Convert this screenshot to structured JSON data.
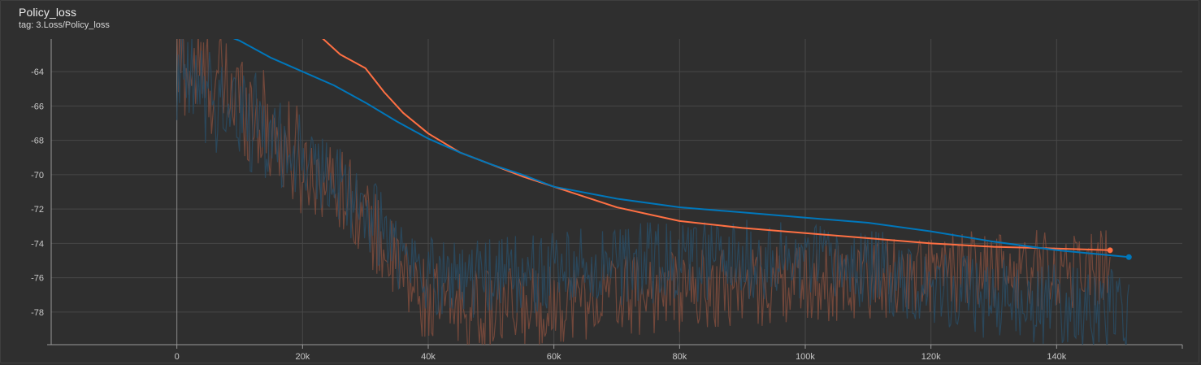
{
  "card": {
    "title": "Policy_loss",
    "tag": "tag: 3.Loss/Policy_loss"
  },
  "chart_data": {
    "type": "line",
    "title": "Policy_loss",
    "xlabel": "",
    "ylabel": "",
    "xlim": [
      -20000,
      160000
    ],
    "ylim": [
      -79.9,
      -62.1
    ],
    "grid": true,
    "x_ticks": [
      0,
      20000,
      40000,
      60000,
      80000,
      100000,
      120000,
      140000
    ],
    "x_tick_labels": [
      "0",
      "20k",
      "40k",
      "60k",
      "80k",
      "100k",
      "120k",
      "140k"
    ],
    "y_ticks": [
      -64,
      -66,
      -68,
      -70,
      -72,
      -74,
      -76,
      -78
    ],
    "y_tick_labels": [
      "-64",
      "-66",
      "-68",
      "-70",
      "-72",
      "-74",
      "-76",
      "-78"
    ],
    "series": [
      {
        "color": "#ff7043",
        "raw_color": "#7a4a3c",
        "smoothed": {
          "x": [
            23000,
            26000,
            30000,
            33000,
            36000,
            40000,
            45000,
            50000,
            55000,
            60000,
            65000,
            70000,
            75000,
            80000,
            90000,
            100000,
            110000,
            120000,
            130000,
            140000,
            148500
          ],
          "y": [
            -62.0,
            -63.0,
            -63.8,
            -65.2,
            -66.4,
            -67.6,
            -68.7,
            -69.4,
            -70.1,
            -70.7,
            -71.3,
            -71.9,
            -72.3,
            -72.7,
            -73.1,
            -73.4,
            -73.7,
            -74.0,
            -74.2,
            -74.3,
            -74.4
          ]
        },
        "raw": {
          "x": [
            0,
            10000,
            20000,
            27000,
            30000,
            35000,
            40000,
            50000,
            60000,
            70000,
            80000,
            90000,
            100000,
            110000,
            120000,
            130000,
            140000,
            148500
          ],
          "y": [
            -63.5,
            -65.5,
            -69.5,
            -71.0,
            -72.5,
            -75.5,
            -77.5,
            -78.0,
            -77.5,
            -77.0,
            -76.8,
            -76.5,
            -76.3,
            -76.0,
            -75.8,
            -75.6,
            -75.5,
            -75.3
          ]
        }
      },
      {
        "color": "#0077bb",
        "raw_color": "#2a4a60",
        "smoothed": {
          "x": [
            1000,
            5000,
            10000,
            15000,
            20000,
            25000,
            30000,
            35000,
            40000,
            45000,
            50000,
            55000,
            60000,
            70000,
            80000,
            90000,
            100000,
            110000,
            120000,
            130000,
            140000,
            151500
          ],
          "y": [
            -61.0,
            -61.5,
            -62.2,
            -63.2,
            -64.0,
            -64.8,
            -65.8,
            -66.9,
            -67.9,
            -68.7,
            -69.4,
            -70.0,
            -70.7,
            -71.4,
            -71.9,
            -72.2,
            -72.5,
            -72.8,
            -73.3,
            -73.9,
            -74.4,
            -74.8
          ]
        },
        "raw": {
          "x": [
            0,
            10000,
            20000,
            30000,
            35000,
            40000,
            50000,
            60000,
            70000,
            80000,
            90000,
            100000,
            110000,
            120000,
            130000,
            140000,
            151500
          ],
          "y": [
            -64.5,
            -66.5,
            -69.0,
            -72.0,
            -74.5,
            -75.8,
            -76.0,
            -75.6,
            -75.2,
            -75.1,
            -75.0,
            -75.2,
            -75.5,
            -76.4,
            -77.3,
            -77.6,
            -78.0
          ]
        }
      }
    ]
  }
}
